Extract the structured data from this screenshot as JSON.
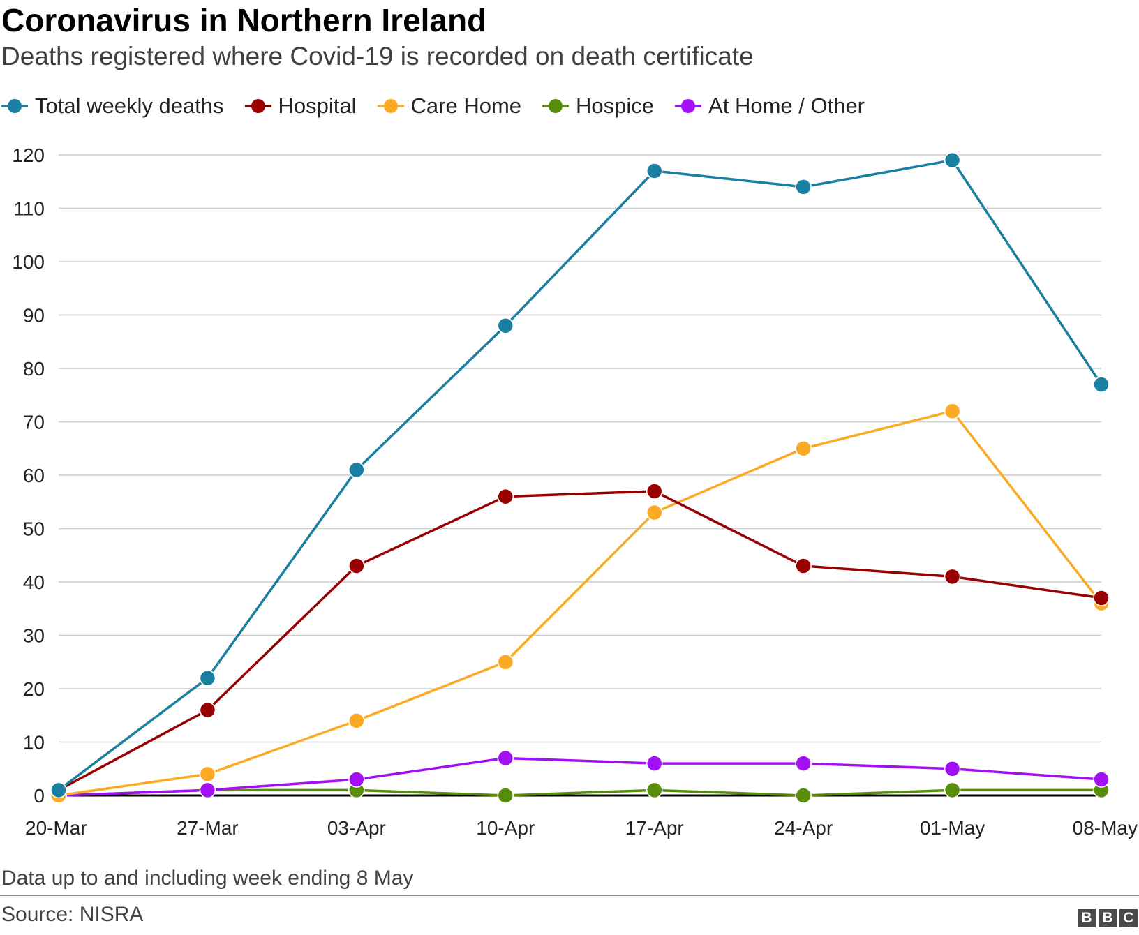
{
  "chart_data": {
    "type": "line",
    "title": "Coronavirus in Northern Ireland",
    "subtitle": "Deaths registered where Covid-19 is recorded on death certificate",
    "x": [
      "20-Mar",
      "27-Mar",
      "03-Apr",
      "10-Apr",
      "17-Apr",
      "24-Apr",
      "01-May",
      "08-May"
    ],
    "series": [
      {
        "name": "Total weekly deaths",
        "color": "#1a7fa0",
        "values": [
          1,
          22,
          61,
          88,
          117,
          114,
          119,
          77
        ]
      },
      {
        "name": "Hospital",
        "color": "#990000",
        "values": [
          1,
          16,
          43,
          56,
          57,
          43,
          41,
          37
        ]
      },
      {
        "name": "Care Home",
        "color": "#fbaa25",
        "values": [
          0,
          4,
          14,
          25,
          53,
          65,
          72,
          36
        ]
      },
      {
        "name": "Hospice",
        "color": "#588d0a",
        "values": [
          0,
          1,
          1,
          0,
          1,
          0,
          1,
          1
        ]
      },
      {
        "name": "At Home / Other",
        "color": "#a20ff5",
        "values": [
          0,
          1,
          3,
          7,
          6,
          6,
          5,
          3
        ]
      }
    ],
    "yticks": [
      0,
      10,
      20,
      30,
      40,
      50,
      60,
      70,
      80,
      90,
      100,
      110,
      120
    ],
    "ylim": [
      0,
      120
    ],
    "grid": true,
    "legend_position": "top-left",
    "note": "Data up to and including week ending 8 May",
    "source": "Source: NISRA"
  },
  "logo": {
    "letters": [
      "B",
      "B",
      "C"
    ]
  }
}
